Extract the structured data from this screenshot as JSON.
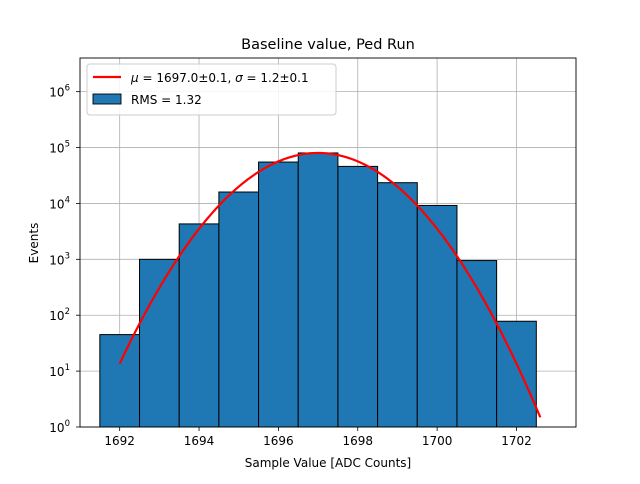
{
  "chart_data": {
    "type": "bar",
    "title": "Baseline value, Ped Run",
    "xlabel": "Sample Value [ADC Counts]",
    "ylabel": "Events",
    "y_scale": "log",
    "xlim": [
      1691,
      1703.5
    ],
    "ylim": [
      1,
      4000000
    ],
    "grid": true,
    "legend_position": "top-left",
    "x_ticks": [
      {
        "value": 1692,
        "label": "1692"
      },
      {
        "value": 1694,
        "label": "1694"
      },
      {
        "value": 1696,
        "label": "1696"
      },
      {
        "value": 1698,
        "label": "1698"
      },
      {
        "value": 1700,
        "label": "1700"
      },
      {
        "value": 1702,
        "label": "1702"
      }
    ],
    "y_ticks": [
      {
        "exp": 0,
        "base": "10",
        "sup": "0"
      },
      {
        "exp": 1,
        "base": "10",
        "sup": "1"
      },
      {
        "exp": 2,
        "base": "10",
        "sup": "2"
      },
      {
        "exp": 3,
        "base": "10",
        "sup": "3"
      },
      {
        "exp": 4,
        "base": "10",
        "sup": "4"
      },
      {
        "exp": 5,
        "base": "10",
        "sup": "5"
      },
      {
        "exp": 6,
        "base": "10",
        "sup": "6"
      }
    ],
    "histogram": {
      "name": "RMS = 1.32",
      "color": "#1f77b4",
      "edge_color": "#000000",
      "bins": [
        {
          "x0": 1691.5,
          "x1": 1692.5,
          "count": 45
        },
        {
          "x0": 1692.5,
          "x1": 1693.5,
          "count": 1000
        },
        {
          "x0": 1693.5,
          "x1": 1694.5,
          "count": 4300
        },
        {
          "x0": 1694.5,
          "x1": 1695.5,
          "count": 16000
        },
        {
          "x0": 1695.5,
          "x1": 1696.5,
          "count": 55000
        },
        {
          "x0": 1696.5,
          "x1": 1697.5,
          "count": 80000
        },
        {
          "x0": 1697.5,
          "x1": 1698.5,
          "count": 46000
        },
        {
          "x0": 1698.5,
          "x1": 1699.5,
          "count": 23500
        },
        {
          "x0": 1699.5,
          "x1": 1700.5,
          "count": 9200
        },
        {
          "x0": 1700.5,
          "x1": 1701.5,
          "count": 950
        },
        {
          "x0": 1701.5,
          "x1": 1702.5,
          "count": 78
        }
      ]
    },
    "fit": {
      "legend_parts": {
        "mu_sym": "μ",
        "mu_text": " = 1697.0±0.1, ",
        "sigma_sym": "σ",
        "sigma_text": " = 1.2±0.1"
      },
      "color": "#ff0000",
      "type": "gaussian",
      "mu": 1697.0,
      "sigma": 1.2,
      "amplitude": 80000,
      "x_range": [
        1692,
        1702.6
      ]
    }
  }
}
